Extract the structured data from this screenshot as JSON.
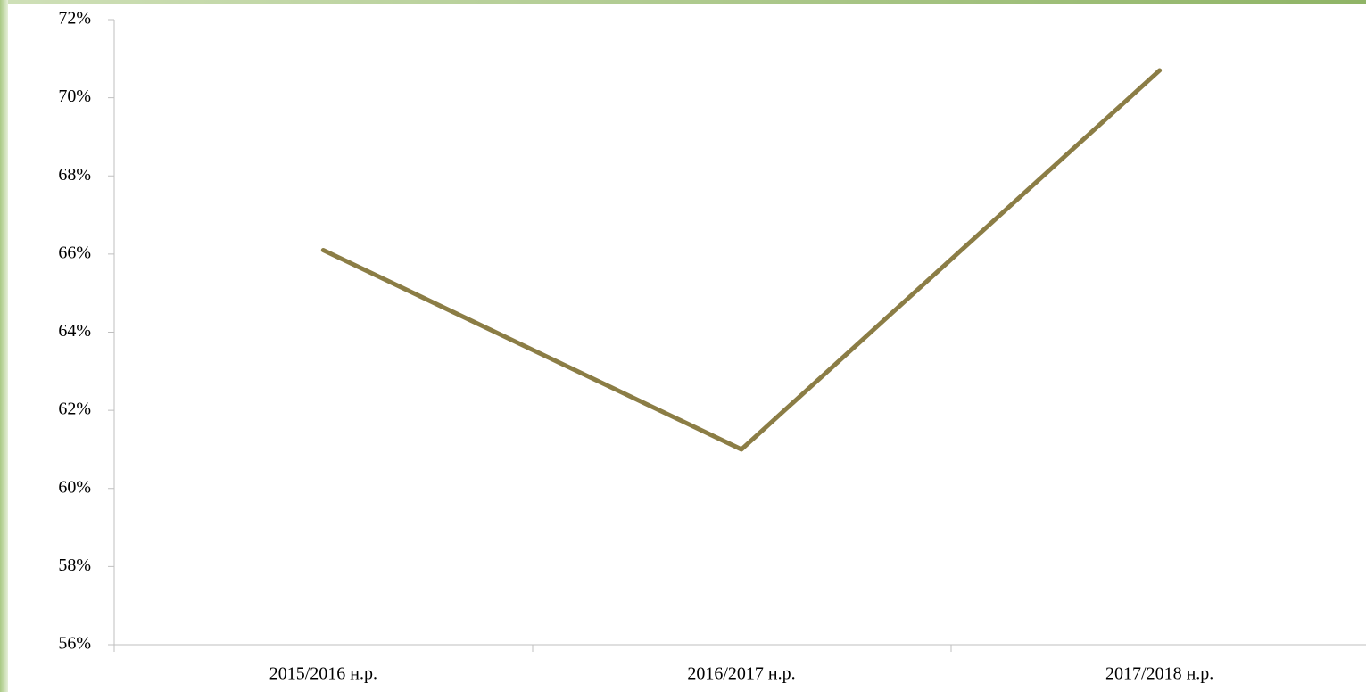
{
  "chart_data": {
    "type": "line",
    "categories": [
      "2015/2016 н.р.",
      "2016/2017 н.р.",
      "2017/2018 н.р."
    ],
    "values": [
      66.1,
      61.0,
      70.7
    ],
    "color": "#8b7d45",
    "ylim": [
      56,
      72
    ],
    "yticks": [
      {
        "value": 56,
        "label": "56%"
      },
      {
        "value": 58,
        "label": "58%"
      },
      {
        "value": 60,
        "label": "60%"
      },
      {
        "value": 62,
        "label": "62%"
      },
      {
        "value": 64,
        "label": "64%"
      },
      {
        "value": 66,
        "label": "66%"
      },
      {
        "value": 68,
        "label": "68%"
      },
      {
        "value": 70,
        "label": "70%"
      },
      {
        "value": 72,
        "label": "72%"
      }
    ],
    "grid": false
  }
}
